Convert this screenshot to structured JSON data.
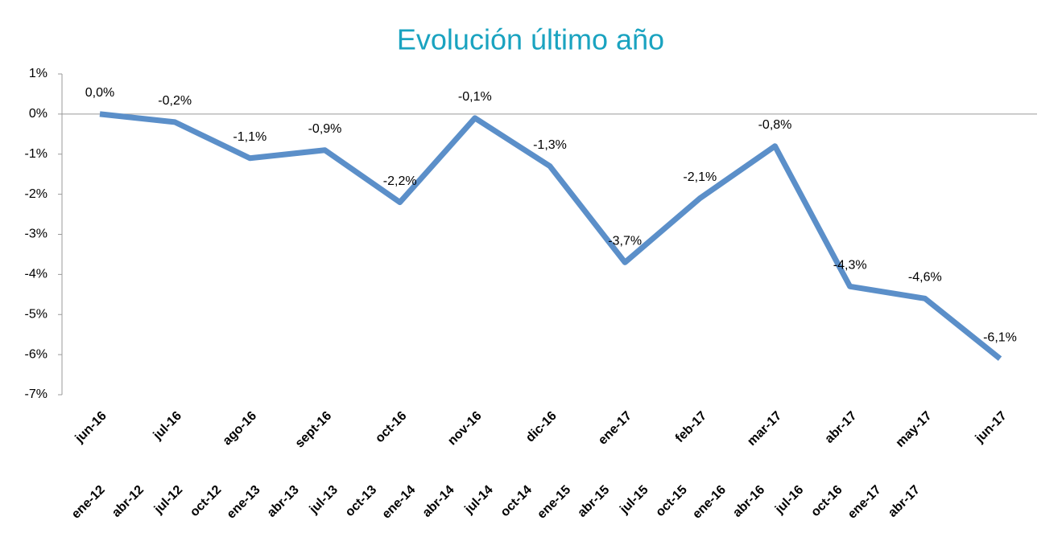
{
  "chart_data": {
    "type": "line",
    "title": "Evolución último año",
    "categories": [
      "jun-16",
      "jul-16",
      "ago-16",
      "sept-16",
      "oct-16",
      "nov-16",
      "dic-16",
      "ene-17",
      "feb-17",
      "mar-17",
      "abr-17",
      "may-17",
      "jun-17"
    ],
    "secondary_categories": [
      "ene-12",
      "abr-12",
      "jul-12",
      "oct-12",
      "ene-13",
      "abr-13",
      "jul-13",
      "oct-13",
      "ene-14",
      "abr-14",
      "jul-14",
      "oct-14",
      "ene-15",
      "abr-15",
      "jul-15",
      "oct-15",
      "ene-16",
      "abr-16",
      "jul-16",
      "oct-16",
      "ene-17",
      "abr-17"
    ],
    "values": [
      0.0,
      -0.2,
      -1.1,
      -0.9,
      -2.2,
      -0.1,
      -1.3,
      -3.7,
      -2.1,
      -0.8,
      -4.3,
      -4.6,
      -6.1
    ],
    "value_labels": [
      "0,0%",
      "-0,2%",
      "-1,1%",
      "-0,9%",
      "-2,2%",
      "-0,1%",
      "-1,3%",
      "-3,7%",
      "-2,1%",
      "-0,8%",
      "-4,3%",
      "-4,6%",
      "-6,1%"
    ],
    "color": "#5b8fc9",
    "ylim": [
      -7,
      1
    ],
    "yticks": [
      {
        "value": 1,
        "label": "1%"
      },
      {
        "value": 0,
        "label": "0%"
      },
      {
        "value": -1,
        "label": "-1%"
      },
      {
        "value": -2,
        "label": "-2%"
      },
      {
        "value": -3,
        "label": "-3%"
      },
      {
        "value": -4,
        "label": "-4%"
      },
      {
        "value": -5,
        "label": "-5%"
      },
      {
        "value": -6,
        "label": "-6%"
      },
      {
        "value": -7,
        "label": "-7%"
      }
    ]
  }
}
